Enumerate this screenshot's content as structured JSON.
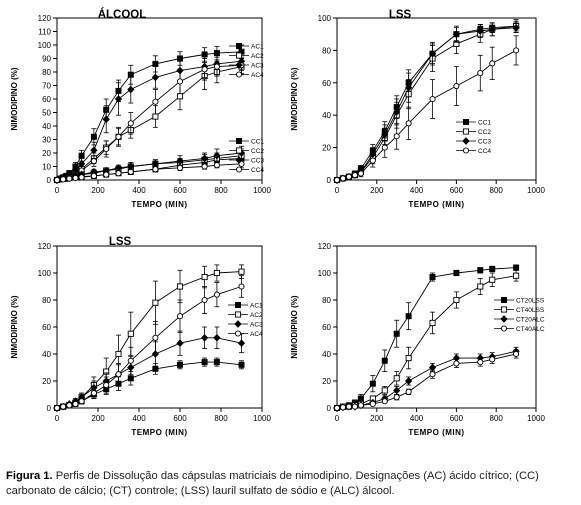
{
  "caption": {
    "label": "Figura 1.",
    "text": "Perfis de Dissolução das cápsulas matriciais de nimodipino. Designações (AC) ácido cítrico; (CC) carbonato de cálcio; (CT) controle; (LSS) lauril sulfato de sódio e (ALC) álcool."
  },
  "chart_data": [
    {
      "type": "line",
      "title": "ÁLCOOL",
      "xlabel": "TEMPO (MIN)",
      "ylabel": "NIMODIPINO (%)",
      "xlim": [
        0,
        1000
      ],
      "ylim": [
        0,
        120
      ],
      "xticks": [
        0,
        200,
        400,
        600,
        800,
        1000
      ],
      "yticks": [
        0,
        10,
        20,
        30,
        40,
        50,
        60,
        70,
        80,
        90,
        100,
        110,
        120
      ],
      "legend_groups": [
        "top-right",
        "bottom-right"
      ],
      "series": [
        {
          "name": "AC1",
          "marker": "square-filled",
          "legend": 0,
          "x": [
            0,
            15,
            30,
            45,
            60,
            90,
            120,
            180,
            240,
            300,
            360,
            480,
            600,
            720,
            780,
            900
          ],
          "y": [
            0,
            1,
            2,
            3,
            5,
            10,
            18,
            32,
            52,
            66,
            78,
            86,
            90,
            93,
            94,
            95
          ],
          "err": [
            0,
            0,
            1,
            1,
            2,
            3,
            4,
            6,
            8,
            8,
            7,
            6,
            5,
            5,
            5,
            5
          ]
        },
        {
          "name": "AC2",
          "marker": "open-square",
          "legend": 0,
          "x": [
            0,
            15,
            30,
            45,
            60,
            90,
            120,
            180,
            240,
            300,
            360,
            480,
            600,
            720,
            780,
            900
          ],
          "y": [
            0,
            0.5,
            1,
            1,
            2,
            4,
            8,
            16,
            24,
            32,
            37,
            47,
            62,
            77,
            80,
            84
          ],
          "err": [
            0,
            0,
            0,
            1,
            1,
            2,
            3,
            4,
            5,
            6,
            6,
            8,
            10,
            10,
            8,
            6
          ]
        },
        {
          "name": "AC3",
          "marker": "diamond-filled",
          "legend": 0,
          "x": [
            0,
            15,
            30,
            45,
            60,
            90,
            120,
            180,
            240,
            300,
            360,
            480,
            600,
            720,
            780,
            900
          ],
          "y": [
            0,
            1,
            2,
            3,
            4,
            7,
            12,
            22,
            45,
            60,
            67,
            76,
            81,
            84,
            86,
            88
          ],
          "err": [
            0,
            0,
            1,
            1,
            2,
            3,
            4,
            6,
            10,
            12,
            10,
            8,
            7,
            8,
            8,
            7
          ]
        },
        {
          "name": "AC4",
          "marker": "open-circle",
          "legend": 0,
          "x": [
            0,
            15,
            30,
            45,
            60,
            90,
            120,
            180,
            240,
            300,
            360,
            480,
            600,
            720,
            780,
            900
          ],
          "y": [
            0,
            0.5,
            1,
            1,
            2,
            4,
            7,
            14,
            23,
            32,
            42,
            58,
            73,
            82,
            84,
            85
          ],
          "err": [
            0,
            0,
            0,
            1,
            1,
            2,
            3,
            4,
            6,
            7,
            8,
            9,
            9,
            8,
            7,
            6
          ]
        },
        {
          "name": "CC1",
          "marker": "square-filled",
          "legend": 1,
          "x": [
            0,
            30,
            60,
            90,
            120,
            180,
            240,
            300,
            360,
            480,
            600,
            720,
            780,
            900
          ],
          "y": [
            0,
            1,
            1.5,
            2,
            2.5,
            3,
            4,
            5,
            6,
            8,
            11,
            13,
            15,
            16
          ],
          "err": [
            0,
            0,
            0,
            1,
            1,
            1,
            1,
            1,
            2,
            2,
            3,
            3,
            4,
            4
          ]
        },
        {
          "name": "CC2",
          "marker": "open-square",
          "legend": 1,
          "x": [
            0,
            30,
            60,
            90,
            120,
            180,
            240,
            300,
            360,
            480,
            600,
            720,
            780,
            900
          ],
          "y": [
            0,
            1,
            2,
            3,
            4,
            5,
            7,
            8,
            10,
            12,
            13,
            15,
            16,
            18
          ],
          "err": [
            0,
            0,
            1,
            1,
            1,
            1,
            2,
            2,
            2,
            3,
            3,
            4,
            4,
            5
          ]
        },
        {
          "name": "CC3",
          "marker": "diamond-filled",
          "legend": 1,
          "x": [
            0,
            30,
            60,
            90,
            120,
            180,
            240,
            300,
            360,
            480,
            600,
            720,
            780,
            900
          ],
          "y": [
            0,
            1,
            2,
            3,
            4,
            6,
            7,
            9,
            10,
            12,
            14,
            16,
            18,
            20
          ],
          "err": [
            0,
            0,
            1,
            1,
            1,
            2,
            2,
            2,
            3,
            3,
            4,
            4,
            5,
            5
          ]
        },
        {
          "name": "CC4",
          "marker": "open-circle",
          "legend": 1,
          "x": [
            0,
            30,
            60,
            90,
            120,
            180,
            240,
            300,
            360,
            480,
            600,
            720,
            780,
            900
          ],
          "y": [
            0,
            0.5,
            1,
            1.5,
            2,
            3,
            4,
            5,
            6,
            8,
            9,
            10,
            11,
            12
          ],
          "err": [
            0,
            0,
            0,
            1,
            1,
            1,
            1,
            1,
            1,
            2,
            2,
            2,
            2,
            3
          ]
        }
      ]
    },
    {
      "type": "line",
      "title": "LSS",
      "xlabel": "TEMPO (MIN)",
      "ylabel": "NIMODIPINO (%)",
      "xlim": [
        0,
        1000
      ],
      "ylim": [
        0,
        100
      ],
      "xticks": [
        0,
        200,
        400,
        600,
        800,
        1000
      ],
      "yticks": [
        0,
        20,
        40,
        60,
        80,
        100
      ],
      "legend_groups": [
        "bottom-right"
      ],
      "series": [
        {
          "name": "CC1",
          "marker": "square-filled",
          "legend": 0,
          "x": [
            0,
            30,
            60,
            90,
            120,
            180,
            240,
            300,
            360,
            480,
            600,
            720,
            780,
            900
          ],
          "y": [
            0,
            1,
            2,
            4,
            7,
            18,
            30,
            45,
            60,
            78,
            90,
            93,
            94,
            95
          ],
          "err": [
            0,
            0,
            1,
            1,
            2,
            4,
            6,
            7,
            8,
            6,
            4,
            3,
            3,
            3
          ]
        },
        {
          "name": "CC2",
          "marker": "open-square",
          "legend": 0,
          "x": [
            0,
            30,
            60,
            90,
            120,
            180,
            240,
            300,
            360,
            480,
            600,
            720,
            780,
            900
          ],
          "y": [
            0,
            1,
            2,
            3,
            5,
            14,
            26,
            40,
            53,
            75,
            84,
            90,
            93,
            95
          ],
          "err": [
            0,
            0,
            1,
            1,
            2,
            4,
            6,
            8,
            9,
            8,
            6,
            5,
            4,
            4
          ]
        },
        {
          "name": "CC3",
          "marker": "diamond-filled",
          "legend": 0,
          "x": [
            0,
            30,
            60,
            90,
            120,
            180,
            240,
            300,
            360,
            480,
            600,
            720,
            780,
            900
          ],
          "y": [
            0,
            1,
            2,
            3,
            5,
            16,
            28,
            42,
            57,
            78,
            90,
            92,
            93,
            94
          ],
          "err": [
            0,
            0,
            1,
            1,
            2,
            4,
            6,
            8,
            9,
            7,
            5,
            4,
            4,
            3
          ]
        },
        {
          "name": "CC4",
          "marker": "open-circle",
          "legend": 0,
          "x": [
            0,
            30,
            60,
            90,
            120,
            180,
            240,
            300,
            360,
            480,
            600,
            720,
            780,
            900
          ],
          "y": [
            0,
            1,
            2,
            3,
            4,
            12,
            20,
            27,
            35,
            50,
            58,
            66,
            72,
            80
          ],
          "err": [
            0,
            0,
            1,
            1,
            2,
            4,
            6,
            8,
            10,
            12,
            12,
            11,
            10,
            9
          ]
        }
      ]
    },
    {
      "type": "line",
      "title": "LSS",
      "xlabel": "TEMPO (MIN)",
      "ylabel": "NIMODIPINO (%)",
      "xlim": [
        0,
        1000
      ],
      "ylim": [
        0,
        120
      ],
      "xticks": [
        0,
        200,
        400,
        600,
        800,
        1000
      ],
      "yticks": [
        0,
        20,
        40,
        60,
        80,
        100,
        120
      ],
      "legend_groups": [
        "middle-right"
      ],
      "series": [
        {
          "name": "AC1",
          "marker": "square-filled",
          "legend": 0,
          "x": [
            0,
            30,
            60,
            90,
            120,
            180,
            240,
            300,
            360,
            480,
            600,
            720,
            780,
            900
          ],
          "y": [
            0,
            1,
            2,
            3,
            5,
            10,
            14,
            18,
            22,
            29,
            32,
            34,
            34,
            32
          ],
          "err": [
            0,
            0,
            1,
            1,
            2,
            3,
            4,
            5,
            5,
            4,
            3,
            3,
            3,
            3
          ]
        },
        {
          "name": "AC2",
          "marker": "open-square",
          "legend": 0,
          "x": [
            0,
            30,
            60,
            90,
            120,
            180,
            240,
            300,
            360,
            480,
            600,
            720,
            780,
            900
          ],
          "y": [
            0,
            1,
            2,
            4,
            8,
            17,
            27,
            40,
            55,
            78,
            90,
            97,
            100,
            101
          ],
          "err": [
            0,
            0,
            1,
            2,
            3,
            6,
            10,
            14,
            16,
            16,
            12,
            8,
            6,
            5
          ]
        },
        {
          "name": "AC3",
          "marker": "diamond-filled",
          "legend": 0,
          "x": [
            0,
            30,
            60,
            90,
            120,
            180,
            240,
            300,
            360,
            480,
            600,
            720,
            780,
            900
          ],
          "y": [
            0,
            1,
            3,
            5,
            8,
            15,
            20,
            25,
            30,
            40,
            48,
            52,
            52,
            48
          ],
          "err": [
            0,
            0,
            1,
            2,
            3,
            5,
            6,
            7,
            8,
            9,
            9,
            8,
            8,
            7
          ]
        },
        {
          "name": "AC4",
          "marker": "open-circle",
          "legend": 0,
          "x": [
            0,
            30,
            60,
            90,
            120,
            180,
            240,
            300,
            360,
            480,
            600,
            720,
            780,
            900
          ],
          "y": [
            0,
            1,
            2,
            3,
            5,
            11,
            17,
            25,
            35,
            52,
            68,
            80,
            84,
            90
          ],
          "err": [
            0,
            0,
            1,
            1,
            2,
            4,
            6,
            8,
            10,
            12,
            12,
            10,
            9,
            8
          ]
        }
      ]
    },
    {
      "type": "line",
      "title": "",
      "xlabel": "TEMPO (MIN)",
      "ylabel": "NIMODIPINO (%)",
      "xlim": [
        0,
        1000
      ],
      "ylim": [
        0,
        120
      ],
      "xticks": [
        0,
        200,
        400,
        600,
        800,
        1000
      ],
      "yticks": [
        0,
        20,
        40,
        60,
        80,
        100,
        120
      ],
      "legend_groups": [
        "middle-right"
      ],
      "series": [
        {
          "name": "CT20LSS",
          "marker": "square-filled",
          "legend": 0,
          "x": [
            0,
            30,
            60,
            90,
            120,
            180,
            240,
            300,
            360,
            480,
            600,
            720,
            780,
            900
          ],
          "y": [
            0,
            1,
            2,
            4,
            7,
            18,
            35,
            55,
            68,
            97,
            100,
            102,
            103,
            104
          ],
          "err": [
            0,
            0,
            1,
            2,
            3,
            6,
            8,
            10,
            10,
            3,
            2,
            2,
            2,
            2
          ]
        },
        {
          "name": "CT40LSS",
          "marker": "open-square",
          "legend": 0,
          "x": [
            0,
            30,
            60,
            90,
            120,
            180,
            240,
            300,
            360,
            480,
            600,
            720,
            780,
            900
          ],
          "y": [
            0,
            1,
            1,
            2,
            3,
            7,
            13,
            22,
            37,
            63,
            80,
            90,
            95,
            98
          ],
          "err": [
            0,
            0,
            0,
            1,
            1,
            2,
            3,
            5,
            8,
            8,
            6,
            6,
            5,
            4
          ]
        },
        {
          "name": "CT20ALC",
          "marker": "diamond-filled",
          "legend": 0,
          "x": [
            0,
            30,
            60,
            90,
            120,
            180,
            240,
            300,
            360,
            480,
            600,
            720,
            780,
            900
          ],
          "y": [
            0,
            0.5,
            1,
            1,
            2,
            4,
            7,
            13,
            20,
            30,
            37,
            37,
            38,
            42
          ],
          "err": [
            0,
            0,
            0,
            0,
            1,
            1,
            2,
            3,
            3,
            3,
            3,
            3,
            3,
            3
          ]
        },
        {
          "name": "CT40ALC",
          "marker": "open-circle",
          "legend": 0,
          "x": [
            0,
            30,
            60,
            90,
            120,
            180,
            240,
            300,
            360,
            480,
            600,
            720,
            780,
            900
          ],
          "y": [
            0,
            0.5,
            1,
            1,
            2,
            3,
            5,
            8,
            12,
            25,
            33,
            34,
            36,
            40
          ],
          "err": [
            0,
            0,
            0,
            0,
            1,
            1,
            1,
            2,
            2,
            3,
            3,
            3,
            3,
            3
          ]
        }
      ]
    }
  ]
}
